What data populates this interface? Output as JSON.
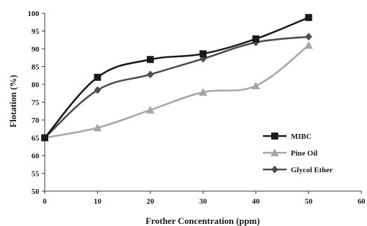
{
  "chart_data": {
    "type": "line",
    "title": "",
    "xlabel": "Frother Concentration (ppm)",
    "ylabel": "Flotation (%)",
    "xlim": [
      0,
      60
    ],
    "ylim": [
      50,
      100
    ],
    "x_ticks": [
      0,
      10,
      20,
      30,
      40,
      50,
      60
    ],
    "y_ticks": [
      50,
      55,
      60,
      65,
      70,
      75,
      80,
      85,
      90,
      95,
      100
    ],
    "grid": false,
    "legend_position": "right",
    "x": [
      0,
      10,
      20,
      30,
      40,
      50
    ],
    "series": [
      {
        "name": "MIBC",
        "values": [
          65,
          82,
          87,
          88.6,
          92.8,
          98.8
        ],
        "color": "#1a1a1a",
        "marker": "square"
      },
      {
        "name": "Pine Oil",
        "values": [
          65,
          67.8,
          72.8,
          77.8,
          79.6,
          91
        ],
        "color": "#a6a6a6",
        "marker": "triangle"
      },
      {
        "name": "Glycol Ether",
        "values": [
          65,
          78.4,
          82.8,
          87.2,
          91.8,
          93.4
        ],
        "color": "#4d4d4d",
        "marker": "diamond"
      }
    ]
  }
}
